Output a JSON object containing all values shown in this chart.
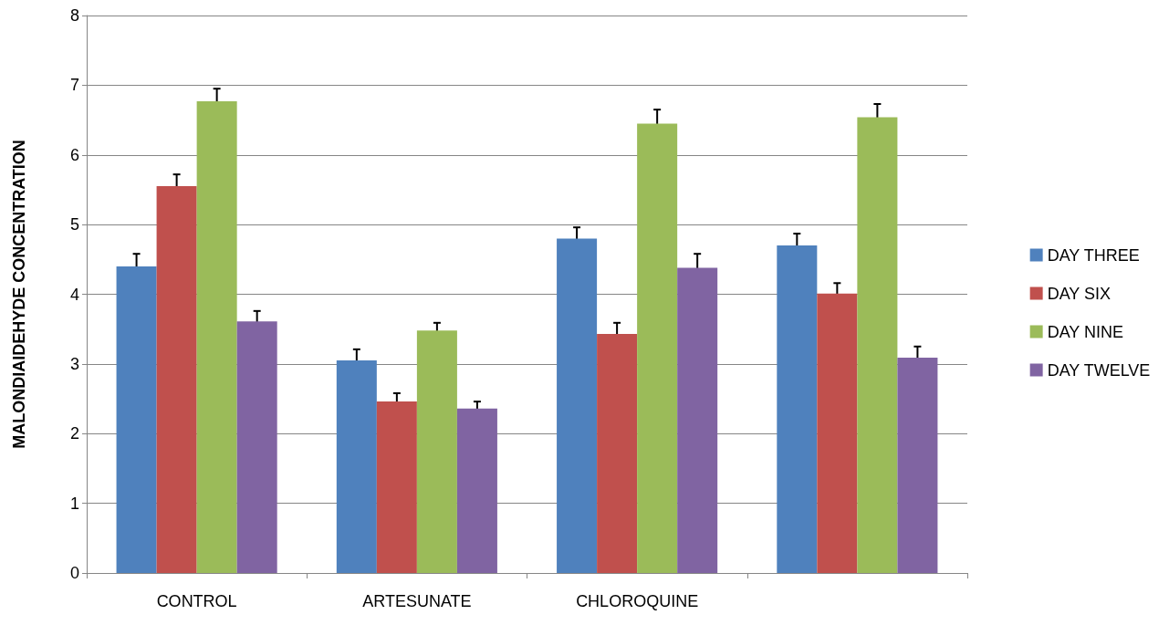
{
  "chart_data": {
    "type": "bar",
    "ylabel": "MALONDIAIDEHYDE CONCENTRATION",
    "categories": [
      "CONTROL",
      "ARTESUNATE",
      "CHLOROQUINE",
      null
    ],
    "series": [
      {
        "name": "DAY THREE",
        "color": "#4f81bd",
        "values": [
          4.4,
          3.05,
          4.8,
          4.7
        ],
        "errors": [
          0.18,
          0.16,
          0.16,
          0.17
        ]
      },
      {
        "name": "DAY SIX",
        "color": "#c0504d",
        "values": [
          5.55,
          2.46,
          3.43,
          4.01
        ],
        "errors": [
          0.17,
          0.12,
          0.16,
          0.15
        ]
      },
      {
        "name": "DAY NINE",
        "color": "#9bbb59",
        "values": [
          6.77,
          3.48,
          6.45,
          6.54
        ],
        "errors": [
          0.18,
          0.11,
          0.2,
          0.19
        ]
      },
      {
        "name": "DAY TWELVE",
        "color": "#8064a2",
        "values": [
          3.61,
          2.36,
          4.38,
          3.09
        ],
        "errors": [
          0.15,
          0.1,
          0.2,
          0.16
        ]
      }
    ],
    "ylim": [
      0,
      8
    ],
    "yticks": [
      0,
      1,
      2,
      3,
      4,
      5,
      6,
      7,
      8
    ],
    "grid": "y",
    "legend": "right"
  }
}
